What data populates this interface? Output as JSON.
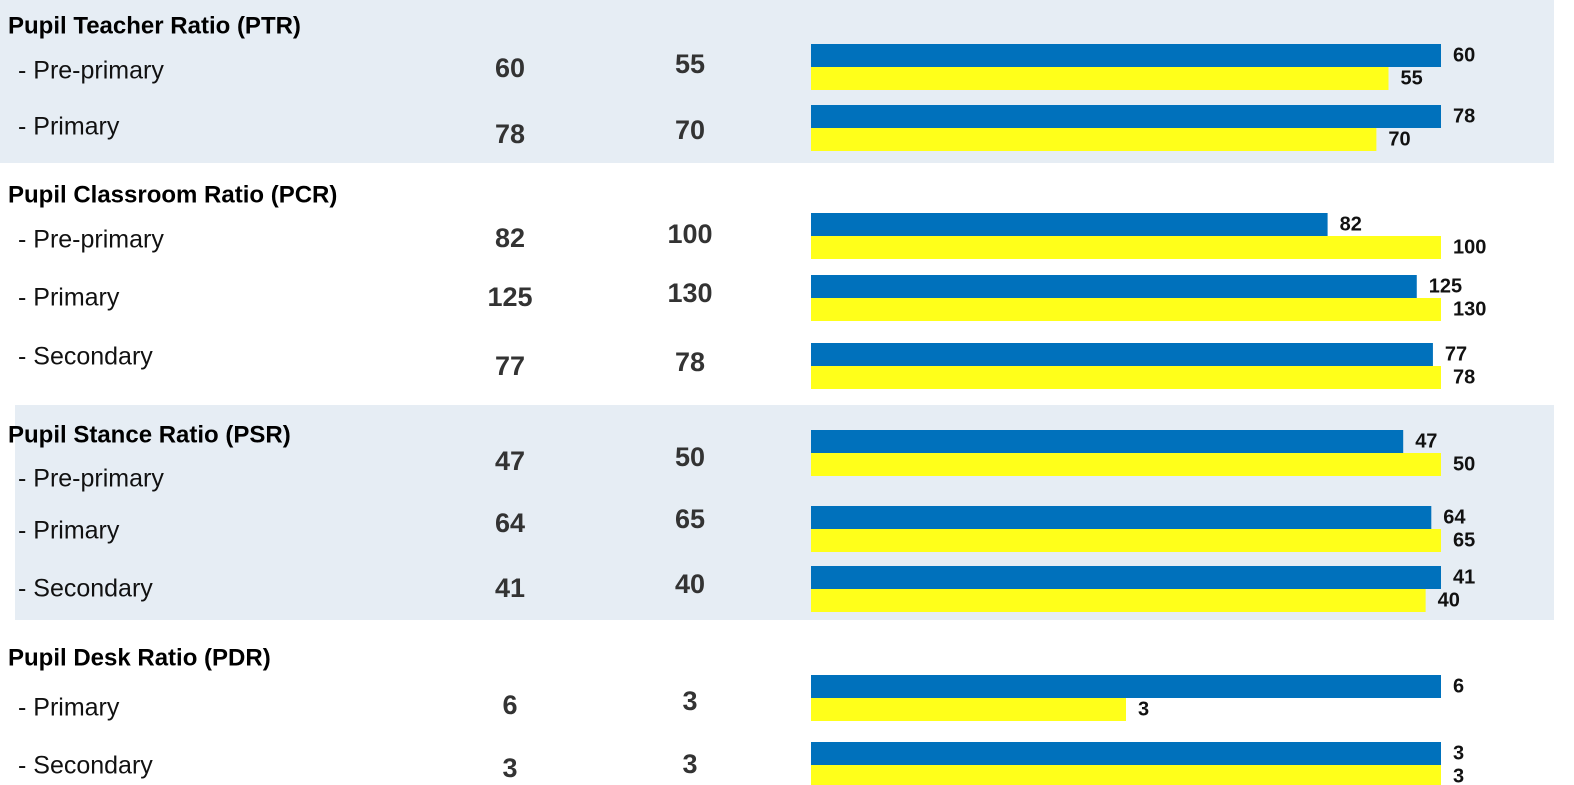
{
  "sections": [
    {
      "title": "Pupil Teacher Ratio (PTR)",
      "rows": [
        {
          "label": "- Pre-primary",
          "values": [
            60,
            55
          ]
        },
        {
          "label": "- Primary",
          "values": [
            78,
            70
          ]
        }
      ]
    },
    {
      "title": "Pupil Classroom Ratio (PCR)",
      "rows": [
        {
          "label": "- Pre-primary",
          "values": [
            82,
            100
          ]
        },
        {
          "label": "- Primary",
          "values": [
            125,
            130
          ]
        },
        {
          "label": "- Secondary",
          "values": [
            77,
            78
          ]
        }
      ]
    },
    {
      "title": "Pupil Stance Ratio (PSR)",
      "rows": [
        {
          "label": "- Pre-primary",
          "values": [
            47,
            50
          ]
        },
        {
          "label": "- Primary",
          "values": [
            64,
            65
          ]
        },
        {
          "label": "- Secondary",
          "values": [
            41,
            40
          ]
        }
      ]
    },
    {
      "title": "Pupil Desk Ratio (PDR)",
      "rows": [
        {
          "label": "- Primary",
          "values": [
            6,
            3
          ]
        },
        {
          "label": "- Secondary",
          "values": [
            3,
            3
          ]
        }
      ]
    }
  ]
}
